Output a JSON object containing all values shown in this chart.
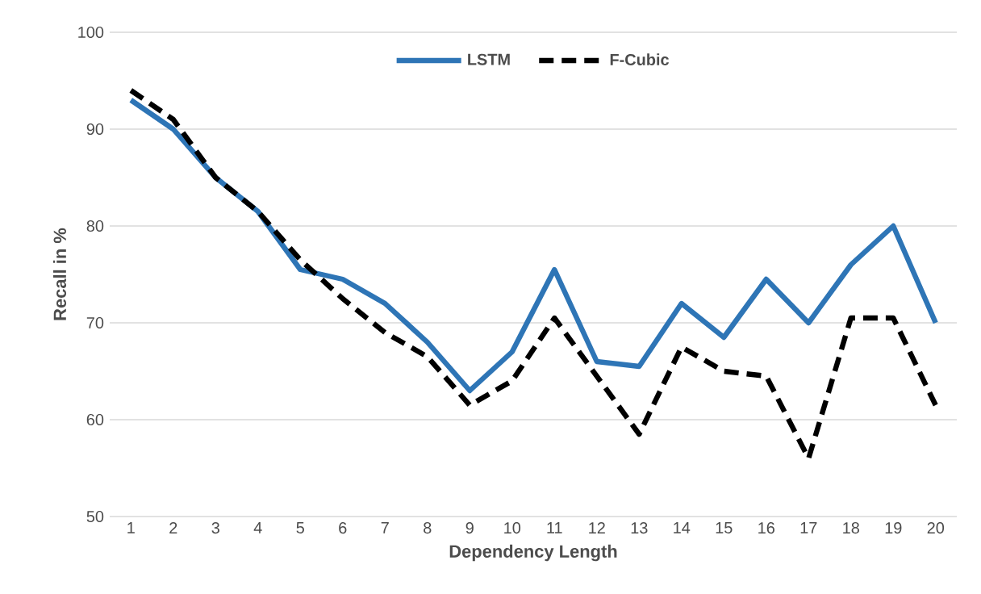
{
  "chart_data": {
    "type": "line",
    "xlabel": "Dependency Length",
    "ylabel": "Recall in %",
    "categories": [
      "1",
      "2",
      "3",
      "4",
      "5",
      "6",
      "7",
      "8",
      "9",
      "10",
      "11",
      "12",
      "13",
      "14",
      "15",
      "16",
      "17",
      "18",
      "19",
      "20"
    ],
    "series": [
      {
        "name": "LSTM",
        "color": "#2e75b6",
        "line_style": "solid",
        "values": [
          93,
          90,
          85,
          81.5,
          75.5,
          74.5,
          72,
          68,
          63,
          67,
          75.5,
          66,
          65.5,
          72,
          68.5,
          74.5,
          70,
          76,
          80,
          70
        ]
      },
      {
        "name": "F-Cubic",
        "color": "#000000",
        "line_style": "dashed",
        "values": [
          94,
          91,
          85,
          81.5,
          76.5,
          72.5,
          69,
          66.5,
          61.5,
          64,
          70.5,
          64.5,
          58.5,
          67.5,
          65,
          64.5,
          56,
          70.5,
          70.5,
          61.5
        ]
      }
    ],
    "ylim": [
      50,
      100
    ],
    "yticks": [
      50,
      60,
      70,
      80,
      90,
      100
    ],
    "grid": "y",
    "legend": "top",
    "marker": "none"
  }
}
